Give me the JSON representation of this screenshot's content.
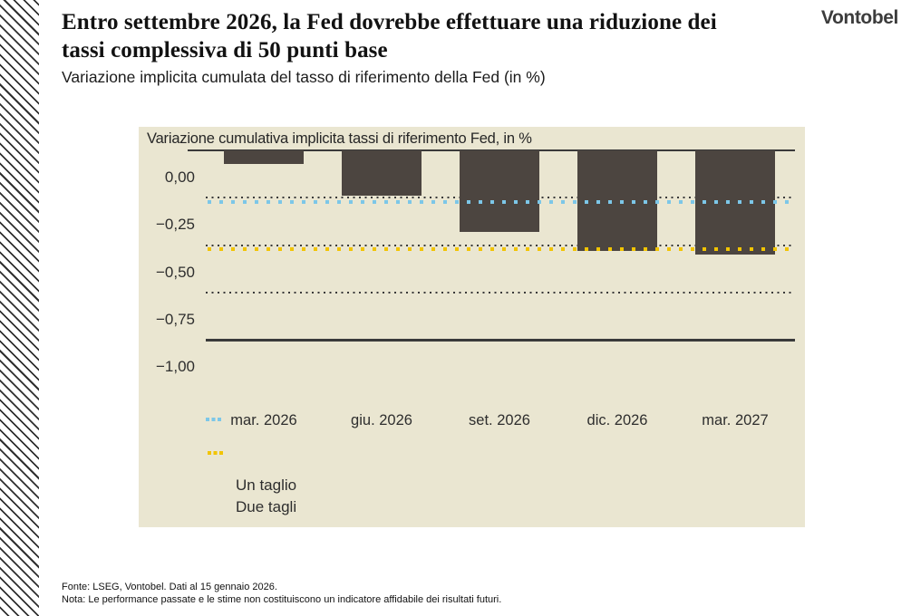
{
  "header": {
    "title_line1": "Entro settembre 2026, la Fed dovrebbe effettuare una riduzione dei",
    "title_line2": "tassi complessiva di 50 punti base",
    "subtitle": "Variazione implicita cumulata del tasso di riferimento della Fed (in %)",
    "logo": "Vontobel"
  },
  "chart_data": {
    "type": "bar",
    "title": "Variazione cumulativa implicita tassi di riferimento Fed, in %",
    "categories": [
      "mar. 2026",
      "giu. 2026",
      "set. 2026",
      "dic. 2026",
      "mar. 2027"
    ],
    "values": [
      -0.07,
      -0.24,
      -0.43,
      -0.53,
      -0.55
    ],
    "unit": "%",
    "ylim": [
      -1.0,
      0.0
    ],
    "yticks": [
      0,
      -0.25,
      -0.5,
      -0.75,
      -1.0
    ],
    "ytick_labels": [
      "0,00",
      "−0,25",
      "−0,50",
      "−0,75",
      "−1,00"
    ],
    "grid": "dotted-horizontal",
    "reference_lines": [
      {
        "label": "Un taglio",
        "value": -0.25,
        "color": "#7cc7e8"
      },
      {
        "label": "Due tagli",
        "value": -0.5,
        "color": "#f2c400"
      }
    ],
    "bar_color": "#4c4540",
    "panel_background": "#eae6d1",
    "legend_position": "bottom-left"
  },
  "footer": {
    "source": "Fonte: LSEG, Vontobel. Dati al 15 gennaio 2026.",
    "note": "Nota: Le performance passate e le stime non costituiscono un indicatore affidabile dei risultati futuri."
  }
}
